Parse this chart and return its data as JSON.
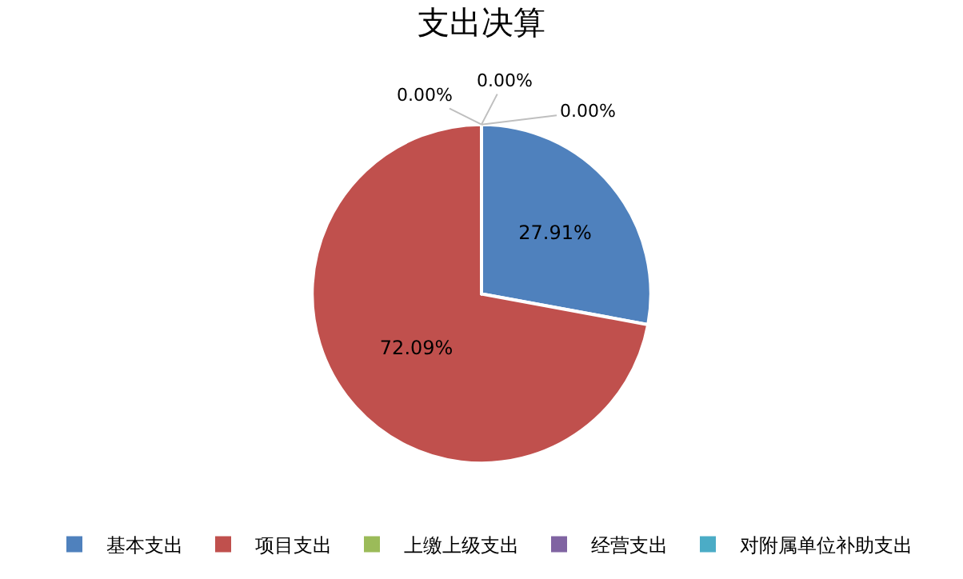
{
  "chart_data": {
    "type": "pie",
    "title": "支出决算",
    "categories": [
      "基本支出",
      "项目支出",
      "上缴上级支出",
      "经营支出",
      "对附属单位补助支出"
    ],
    "values": [
      27.91,
      72.09,
      0,
      0,
      0
    ],
    "colors": [
      "#4f81bd",
      "#c0504d",
      "#9bbb59",
      "#8064a2",
      "#4bacc6"
    ],
    "value_labels": [
      "27.91%",
      "72.09%",
      "0.00%",
      "0.00%",
      "0.00%"
    ],
    "legend": "bottom"
  }
}
